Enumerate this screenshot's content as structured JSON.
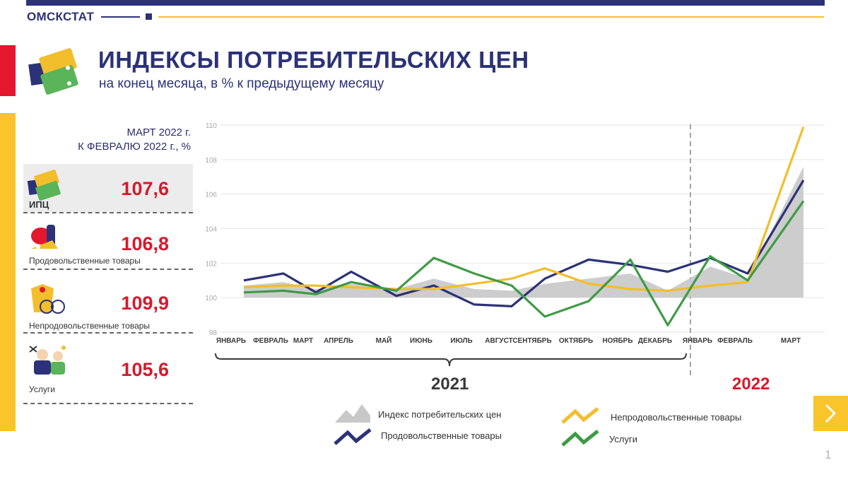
{
  "header": {
    "brand": "ОМСКСТАТ",
    "title": "ИНДЕКСЫ ПОТРЕБИТЕЛЬСКИХ ЦЕН",
    "subtitle": "на конец месяца, в % к предыдущему месяцу"
  },
  "panel": {
    "heading_line1": "МАРТ 2022 г.",
    "heading_line2": "К ФЕВРАЛЮ 2022 г., %",
    "stats": [
      {
        "label": "ИПЦ",
        "value": "107,6",
        "icon": "price-tags-icon"
      },
      {
        "label": "Продовольственные товары",
        "value": "106,8",
        "icon": "food-icon"
      },
      {
        "label": "Непродовольственные товары",
        "value": "109,9",
        "icon": "goods-icon"
      },
      {
        "label": "Услуги",
        "value": "105,6",
        "icon": "services-icon"
      }
    ]
  },
  "colors": {
    "cpi": "#c8c8c8",
    "food": "#2b3278",
    "nonfood": "#f3be2b",
    "services": "#3f9b45",
    "accent_red": "#d5192e",
    "year_2021": "#3a3a3a",
    "year_2022": "#d5192e"
  },
  "chart_data": {
    "type": "line",
    "categories": [
      "ЯНВАРЬ",
      "ФЕВРАЛЬ",
      "МАРТ",
      "АПРЕЛЬ",
      "МАЙ",
      "ИЮНЬ",
      "ИЮЛЬ",
      "АВГУСТ",
      "СЕНТЯБРЬ",
      "ОКТЯБРЬ",
      "НОЯБРЬ",
      "ДЕКАБРЬ",
      "ЯНВАРЬ",
      "ФЕВРАЛЬ",
      "МАРТ"
    ],
    "years": [
      {
        "label": "2021",
        "from": 0,
        "to": 11
      },
      {
        "label": "2022",
        "from": 12,
        "to": 14
      }
    ],
    "ylim": [
      98,
      110
    ],
    "yticks": [
      98,
      100,
      102,
      104,
      106,
      108,
      110
    ],
    "grid": true,
    "series": [
      {
        "name": "Индекс потребительских цен",
        "kind": "area",
        "values": [
          100.7,
          100.9,
          100.5,
          100.8,
          100.5,
          101.1,
          100.5,
          100.4,
          100.8,
          101.1,
          101.4,
          100.4,
          101.8,
          101.1,
          107.6
        ]
      },
      {
        "name": "Продовольственные товары",
        "kind": "line",
        "values": [
          101.0,
          101.4,
          100.3,
          101.5,
          100.1,
          100.7,
          99.6,
          99.5,
          101.1,
          102.2,
          101.9,
          101.5,
          102.3,
          101.4,
          106.8
        ]
      },
      {
        "name": "Непродовольственные товары",
        "kind": "line",
        "values": [
          100.6,
          100.7,
          100.7,
          100.6,
          100.5,
          100.5,
          100.8,
          101.1,
          101.7,
          100.8,
          100.5,
          100.4,
          100.7,
          100.9,
          109.9
        ]
      },
      {
        "name": "Услуги",
        "kind": "line",
        "values": [
          100.3,
          100.4,
          100.2,
          100.9,
          100.4,
          102.3,
          101.4,
          100.7,
          98.9,
          99.8,
          102.2,
          98.4,
          102.4,
          101.0,
          105.6
        ]
      }
    ]
  },
  "nav": {
    "page": "1"
  }
}
